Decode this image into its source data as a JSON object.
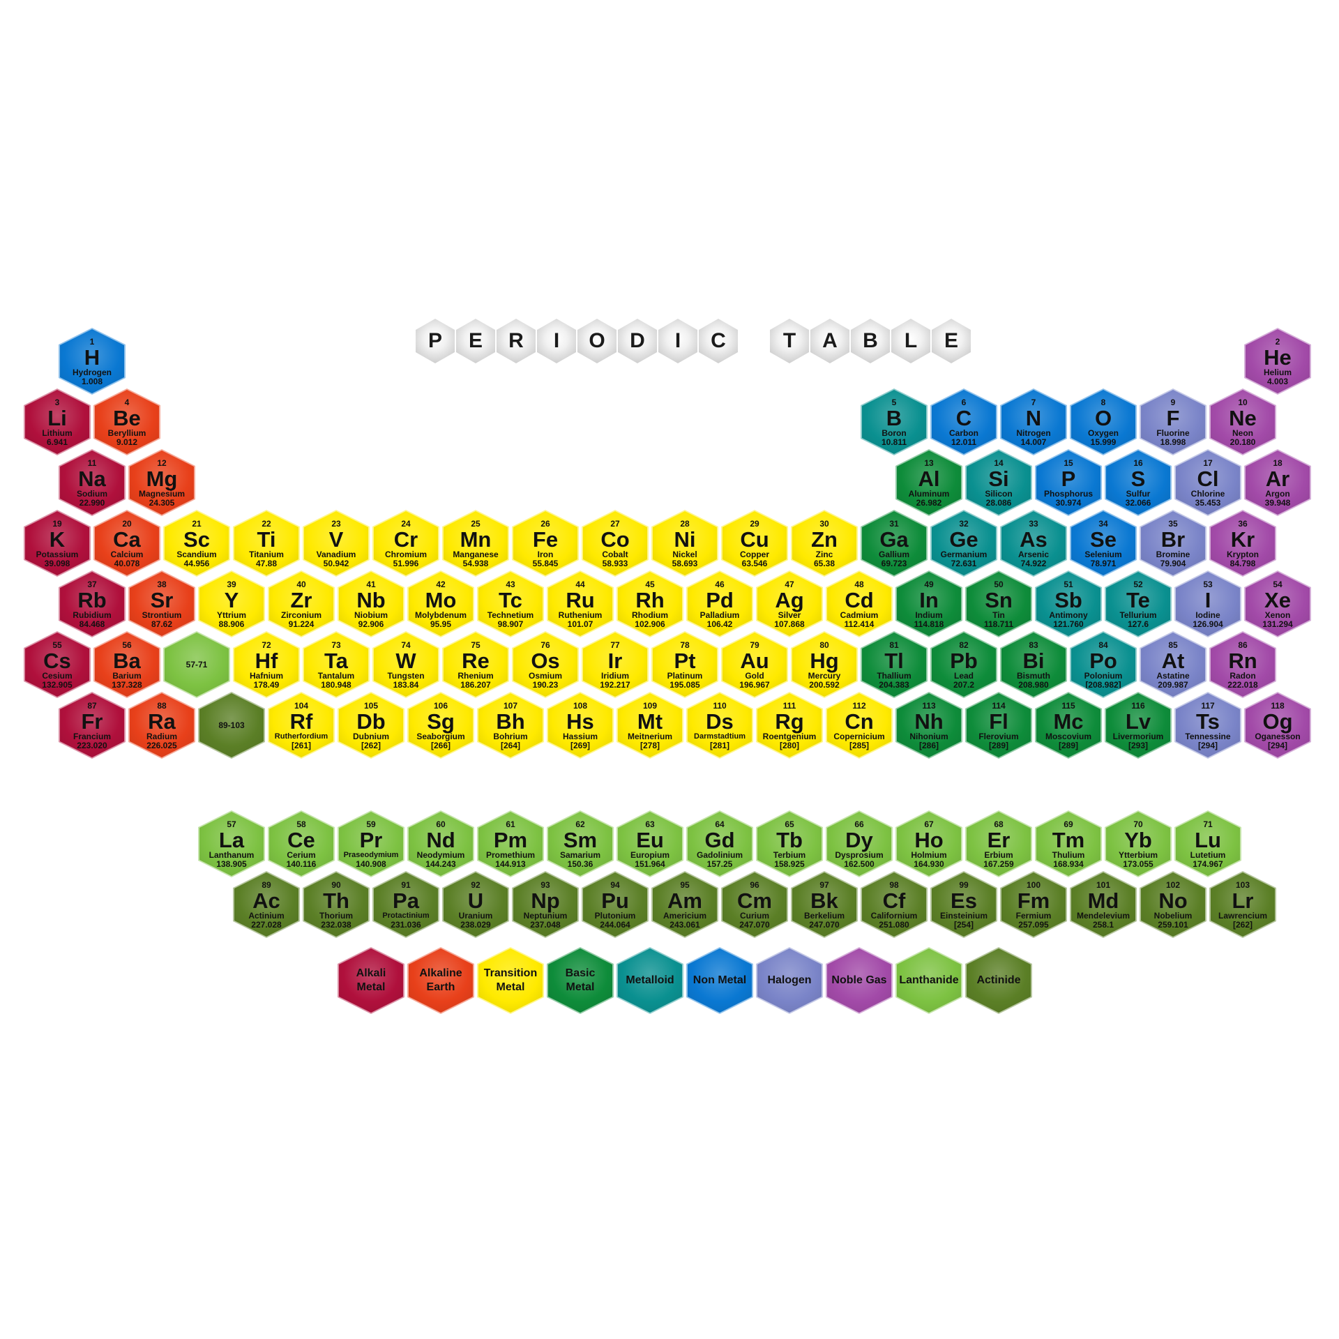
{
  "title": "PERIODIC TABLE",
  "colors": {
    "alkali": "#B0103C",
    "alkaline": "#E8401A",
    "transition": "#FFEA00",
    "basic": "#0E8C3A",
    "metalloid": "#0A9090",
    "nonmetal": "#0A78D2",
    "halogen": "#7A84C8",
    "noble": "#A24AA8",
    "lanthanide": "#7DC242",
    "actinide": "#5B7F26"
  },
  "elements": [
    {
      "n": "1",
      "s": "H",
      "name": "Hydrogen",
      "m": "1.008",
      "c": "nonmetal",
      "col": 0,
      "row": 0
    },
    {
      "n": "2",
      "s": "He",
      "name": "Helium",
      "m": "4.003",
      "c": "noble",
      "col": 17,
      "row": 0
    },
    {
      "n": "3",
      "s": "Li",
      "name": "Lithium",
      "m": "6.941",
      "c": "alkali",
      "col": 0,
      "row": 1
    },
    {
      "n": "4",
      "s": "Be",
      "name": "Beryllium",
      "m": "9.012",
      "c": "alkaline",
      "col": 1,
      "row": 1
    },
    {
      "n": "5",
      "s": "B",
      "name": "Boron",
      "m": "10.811",
      "c": "metalloid",
      "col": 12,
      "row": 1
    },
    {
      "n": "6",
      "s": "C",
      "name": "Carbon",
      "m": "12.011",
      "c": "nonmetal",
      "col": 13,
      "row": 1
    },
    {
      "n": "7",
      "s": "N",
      "name": "Nitrogen",
      "m": "14.007",
      "c": "nonmetal",
      "col": 14,
      "row": 1
    },
    {
      "n": "8",
      "s": "O",
      "name": "Oxygen",
      "m": "15.999",
      "c": "nonmetal",
      "col": 15,
      "row": 1
    },
    {
      "n": "9",
      "s": "F",
      "name": "Fluorine",
      "m": "18.998",
      "c": "halogen",
      "col": 16,
      "row": 1
    },
    {
      "n": "10",
      "s": "Ne",
      "name": "Neon",
      "m": "20.180",
      "c": "noble",
      "col": 17,
      "row": 1
    },
    {
      "n": "11",
      "s": "Na",
      "name": "Sodium",
      "m": "22.990",
      "c": "alkali",
      "col": 0,
      "row": 2
    },
    {
      "n": "12",
      "s": "Mg",
      "name": "Magnesium",
      "m": "24.305",
      "c": "alkaline",
      "col": 1,
      "row": 2
    },
    {
      "n": "13",
      "s": "Al",
      "name": "Aluminum",
      "m": "26.982",
      "c": "basic",
      "col": 12,
      "row": 2
    },
    {
      "n": "14",
      "s": "Si",
      "name": "Silicon",
      "m": "28.086",
      "c": "metalloid",
      "col": 13,
      "row": 2
    },
    {
      "n": "15",
      "s": "P",
      "name": "Phosphorus",
      "m": "30.974",
      "c": "nonmetal",
      "col": 14,
      "row": 2
    },
    {
      "n": "16",
      "s": "S",
      "name": "Sulfur",
      "m": "32.066",
      "c": "nonmetal",
      "col": 15,
      "row": 2
    },
    {
      "n": "17",
      "s": "Cl",
      "name": "Chlorine",
      "m": "35.453",
      "c": "halogen",
      "col": 16,
      "row": 2
    },
    {
      "n": "18",
      "s": "Ar",
      "name": "Argon",
      "m": "39.948",
      "c": "noble",
      "col": 17,
      "row": 2
    },
    {
      "n": "19",
      "s": "K",
      "name": "Potassium",
      "m": "39.098",
      "c": "alkali",
      "col": 0,
      "row": 3
    },
    {
      "n": "20",
      "s": "Ca",
      "name": "Calcium",
      "m": "40.078",
      "c": "alkaline",
      "col": 1,
      "row": 3
    },
    {
      "n": "21",
      "s": "Sc",
      "name": "Scandium",
      "m": "44.956",
      "c": "transition",
      "col": 2,
      "row": 3
    },
    {
      "n": "22",
      "s": "Ti",
      "name": "Titanium",
      "m": "47.88",
      "c": "transition",
      "col": 3,
      "row": 3
    },
    {
      "n": "23",
      "s": "V",
      "name": "Vanadium",
      "m": "50.942",
      "c": "transition",
      "col": 4,
      "row": 3
    },
    {
      "n": "24",
      "s": "Cr",
      "name": "Chromium",
      "m": "51.996",
      "c": "transition",
      "col": 5,
      "row": 3
    },
    {
      "n": "25",
      "s": "Mn",
      "name": "Manganese",
      "m": "54.938",
      "c": "transition",
      "col": 6,
      "row": 3
    },
    {
      "n": "26",
      "s": "Fe",
      "name": "Iron",
      "m": "55.845",
      "c": "transition",
      "col": 7,
      "row": 3
    },
    {
      "n": "27",
      "s": "Co",
      "name": "Cobalt",
      "m": "58.933",
      "c": "transition",
      "col": 8,
      "row": 3
    },
    {
      "n": "28",
      "s": "Ni",
      "name": "Nickel",
      "m": "58.693",
      "c": "transition",
      "col": 9,
      "row": 3
    },
    {
      "n": "29",
      "s": "Cu",
      "name": "Copper",
      "m": "63.546",
      "c": "transition",
      "col": 10,
      "row": 3
    },
    {
      "n": "30",
      "s": "Zn",
      "name": "Zinc",
      "m": "65.38",
      "c": "transition",
      "col": 11,
      "row": 3
    },
    {
      "n": "31",
      "s": "Ga",
      "name": "Gallium",
      "m": "69.723",
      "c": "basic",
      "col": 12,
      "row": 3
    },
    {
      "n": "32",
      "s": "Ge",
      "name": "Germanium",
      "m": "72.631",
      "c": "metalloid",
      "col": 13,
      "row": 3
    },
    {
      "n": "33",
      "s": "As",
      "name": "Arsenic",
      "m": "74.922",
      "c": "metalloid",
      "col": 14,
      "row": 3
    },
    {
      "n": "34",
      "s": "Se",
      "name": "Selenium",
      "m": "78.971",
      "c": "nonmetal",
      "col": 15,
      "row": 3
    },
    {
      "n": "35",
      "s": "Br",
      "name": "Bromine",
      "m": "79.904",
      "c": "halogen",
      "col": 16,
      "row": 3
    },
    {
      "n": "36",
      "s": "Kr",
      "name": "Krypton",
      "m": "84.798",
      "c": "noble",
      "col": 17,
      "row": 3
    },
    {
      "n": "37",
      "s": "Rb",
      "name": "Rubidium",
      "m": "84.468",
      "c": "alkali",
      "col": 0,
      "row": 4
    },
    {
      "n": "38",
      "s": "Sr",
      "name": "Strontium",
      "m": "87.62",
      "c": "alkaline",
      "col": 1,
      "row": 4
    },
    {
      "n": "39",
      "s": "Y",
      "name": "Yttrium",
      "m": "88.906",
      "c": "transition",
      "col": 2,
      "row": 4
    },
    {
      "n": "40",
      "s": "Zr",
      "name": "Zirconium",
      "m": "91.224",
      "c": "transition",
      "col": 3,
      "row": 4
    },
    {
      "n": "41",
      "s": "Nb",
      "name": "Niobium",
      "m": "92.906",
      "c": "transition",
      "col": 4,
      "row": 4
    },
    {
      "n": "42",
      "s": "Mo",
      "name": "Molybdenum",
      "m": "95.95",
      "c": "transition",
      "col": 5,
      "row": 4
    },
    {
      "n": "43",
      "s": "Tc",
      "name": "Technetium",
      "m": "98.907",
      "c": "transition",
      "col": 6,
      "row": 4
    },
    {
      "n": "44",
      "s": "Ru",
      "name": "Ruthenium",
      "m": "101.07",
      "c": "transition",
      "col": 7,
      "row": 4
    },
    {
      "n": "45",
      "s": "Rh",
      "name": "Rhodium",
      "m": "102.906",
      "c": "transition",
      "col": 8,
      "row": 4
    },
    {
      "n": "46",
      "s": "Pd",
      "name": "Palladium",
      "m": "106.42",
      "c": "transition",
      "col": 9,
      "row": 4
    },
    {
      "n": "47",
      "s": "Ag",
      "name": "Silver",
      "m": "107.868",
      "c": "transition",
      "col": 10,
      "row": 4
    },
    {
      "n": "48",
      "s": "Cd",
      "name": "Cadmium",
      "m": "112.414",
      "c": "transition",
      "col": 11,
      "row": 4
    },
    {
      "n": "49",
      "s": "In",
      "name": "Indium",
      "m": "114.818",
      "c": "basic",
      "col": 12,
      "row": 4
    },
    {
      "n": "50",
      "s": "Sn",
      "name": "Tin",
      "m": "118.711",
      "c": "basic",
      "col": 13,
      "row": 4
    },
    {
      "n": "51",
      "s": "Sb",
      "name": "Antimony",
      "m": "121.760",
      "c": "metalloid",
      "col": 14,
      "row": 4
    },
    {
      "n": "52",
      "s": "Te",
      "name": "Tellurium",
      "m": "127.6",
      "c": "metalloid",
      "col": 15,
      "row": 4
    },
    {
      "n": "53",
      "s": "I",
      "name": "Iodine",
      "m": "126.904",
      "c": "halogen",
      "col": 16,
      "row": 4
    },
    {
      "n": "54",
      "s": "Xe",
      "name": "Xenon",
      "m": "131.294",
      "c": "noble",
      "col": 17,
      "row": 4
    },
    {
      "n": "55",
      "s": "Cs",
      "name": "Cesium",
      "m": "132.905",
      "c": "alkali",
      "col": 0,
      "row": 5
    },
    {
      "n": "56",
      "s": "Ba",
      "name": "Barium",
      "m": "137.328",
      "c": "alkaline",
      "col": 1,
      "row": 5
    },
    {
      "n": "72",
      "s": "Hf",
      "name": "Hafnium",
      "m": "178.49",
      "c": "transition",
      "col": 3,
      "row": 5
    },
    {
      "n": "73",
      "s": "Ta",
      "name": "Tantalum",
      "m": "180.948",
      "c": "transition",
      "col": 4,
      "row": 5
    },
    {
      "n": "74",
      "s": "W",
      "name": "Tungsten",
      "m": "183.84",
      "c": "transition",
      "col": 5,
      "row": 5
    },
    {
      "n": "75",
      "s": "Re",
      "name": "Rhenium",
      "m": "186.207",
      "c": "transition",
      "col": 6,
      "row": 5
    },
    {
      "n": "76",
      "s": "Os",
      "name": "Osmium",
      "m": "190.23",
      "c": "transition",
      "col": 7,
      "row": 5
    },
    {
      "n": "77",
      "s": "Ir",
      "name": "Iridium",
      "m": "192.217",
      "c": "transition",
      "col": 8,
      "row": 5
    },
    {
      "n": "78",
      "s": "Pt",
      "name": "Platinum",
      "m": "195.085",
      "c": "transition",
      "col": 9,
      "row": 5
    },
    {
      "n": "79",
      "s": "Au",
      "name": "Gold",
      "m": "196.967",
      "c": "transition",
      "col": 10,
      "row": 5
    },
    {
      "n": "80",
      "s": "Hg",
      "name": "Mercury",
      "m": "200.592",
      "c": "transition",
      "col": 11,
      "row": 5
    },
    {
      "n": "81",
      "s": "Tl",
      "name": "Thallium",
      "m": "204.383",
      "c": "basic",
      "col": 12,
      "row": 5
    },
    {
      "n": "82",
      "s": "Pb",
      "name": "Lead",
      "m": "207.2",
      "c": "basic",
      "col": 13,
      "row": 5
    },
    {
      "n": "83",
      "s": "Bi",
      "name": "Bismuth",
      "m": "208.980",
      "c": "basic",
      "col": 14,
      "row": 5
    },
    {
      "n": "84",
      "s": "Po",
      "name": "Polonium",
      "m": "[208.982]",
      "c": "metalloid",
      "col": 15,
      "row": 5
    },
    {
      "n": "85",
      "s": "At",
      "name": "Astatine",
      "m": "209.987",
      "c": "halogen",
      "col": 16,
      "row": 5
    },
    {
      "n": "86",
      "s": "Rn",
      "name": "Radon",
      "m": "222.018",
      "c": "noble",
      "col": 17,
      "row": 5
    },
    {
      "n": "87",
      "s": "Fr",
      "name": "Francium",
      "m": "223.020",
      "c": "alkali",
      "col": 0,
      "row": 6
    },
    {
      "n": "88",
      "s": "Ra",
      "name": "Radium",
      "m": "226.025",
      "c": "alkaline",
      "col": 1,
      "row": 6
    },
    {
      "n": "104",
      "s": "Rf",
      "name": "Rutherfordium",
      "m": "[261]",
      "c": "transition",
      "col": 3,
      "row": 6
    },
    {
      "n": "105",
      "s": "Db",
      "name": "Dubnium",
      "m": "[262]",
      "c": "transition",
      "col": 4,
      "row": 6
    },
    {
      "n": "106",
      "s": "Sg",
      "name": "Seaborgium",
      "m": "[266]",
      "c": "transition",
      "col": 5,
      "row": 6
    },
    {
      "n": "107",
      "s": "Bh",
      "name": "Bohrium",
      "m": "[264]",
      "c": "transition",
      "col": 6,
      "row": 6
    },
    {
      "n": "108",
      "s": "Hs",
      "name": "Hassium",
      "m": "[269]",
      "c": "transition",
      "col": 7,
      "row": 6
    },
    {
      "n": "109",
      "s": "Mt",
      "name": "Meitnerium",
      "m": "[278]",
      "c": "transition",
      "col": 8,
      "row": 6
    },
    {
      "n": "110",
      "s": "Ds",
      "name": "Darmstadtium",
      "m": "[281]",
      "c": "transition",
      "col": 9,
      "row": 6
    },
    {
      "n": "111",
      "s": "Rg",
      "name": "Roentgenium",
      "m": "[280]",
      "c": "transition",
      "col": 10,
      "row": 6
    },
    {
      "n": "112",
      "s": "Cn",
      "name": "Copernicium",
      "m": "[285]",
      "c": "transition",
      "col": 11,
      "row": 6
    },
    {
      "n": "113",
      "s": "Nh",
      "name": "Nihonium",
      "m": "[286]",
      "c": "basic",
      "col": 12,
      "row": 6
    },
    {
      "n": "114",
      "s": "Fl",
      "name": "Flerovium",
      "m": "[289]",
      "c": "basic",
      "col": 13,
      "row": 6
    },
    {
      "n": "115",
      "s": "Mc",
      "name": "Moscovium",
      "m": "[289]",
      "c": "basic",
      "col": 14,
      "row": 6
    },
    {
      "n": "116",
      "s": "Lv",
      "name": "Livermorium",
      "m": "[293]",
      "c": "basic",
      "col": 15,
      "row": 6
    },
    {
      "n": "117",
      "s": "Ts",
      "name": "Tennessine",
      "m": "[294]",
      "c": "halogen",
      "col": 16,
      "row": 6
    },
    {
      "n": "118",
      "s": "Og",
      "name": "Oganesson",
      "m": "[294]",
      "c": "noble",
      "col": 17,
      "row": 6
    }
  ],
  "placeholders": [
    {
      "label": "57-71",
      "c": "lanthanide",
      "col": 2,
      "row": 5
    },
    {
      "label": "89-103",
      "c": "actinide",
      "col": 2,
      "row": 6
    }
  ],
  "f_block": [
    {
      "n": "57",
      "s": "La",
      "name": "Lanthanum",
      "m": "138.905",
      "c": "lanthanide",
      "col": 0,
      "row": 0
    },
    {
      "n": "58",
      "s": "Ce",
      "name": "Cerium",
      "m": "140.116",
      "c": "lanthanide",
      "col": 1,
      "row": 0
    },
    {
      "n": "59",
      "s": "Pr",
      "name": "Praseodymium",
      "m": "140.908",
      "c": "lanthanide",
      "col": 2,
      "row": 0
    },
    {
      "n": "60",
      "s": "Nd",
      "name": "Neodymium",
      "m": "144.243",
      "c": "lanthanide",
      "col": 3,
      "row": 0
    },
    {
      "n": "61",
      "s": "Pm",
      "name": "Promethium",
      "m": "144.913",
      "c": "lanthanide",
      "col": 4,
      "row": 0
    },
    {
      "n": "62",
      "s": "Sm",
      "name": "Samarium",
      "m": "150.36",
      "c": "lanthanide",
      "col": 5,
      "row": 0
    },
    {
      "n": "63",
      "s": "Eu",
      "name": "Europium",
      "m": "151.964",
      "c": "lanthanide",
      "col": 6,
      "row": 0
    },
    {
      "n": "64",
      "s": "Gd",
      "name": "Gadolinium",
      "m": "157.25",
      "c": "lanthanide",
      "col": 7,
      "row": 0
    },
    {
      "n": "65",
      "s": "Tb",
      "name": "Terbium",
      "m": "158.925",
      "c": "lanthanide",
      "col": 8,
      "row": 0
    },
    {
      "n": "66",
      "s": "Dy",
      "name": "Dysprosium",
      "m": "162.500",
      "c": "lanthanide",
      "col": 9,
      "row": 0
    },
    {
      "n": "67",
      "s": "Ho",
      "name": "Holmium",
      "m": "164.930",
      "c": "lanthanide",
      "col": 10,
      "row": 0
    },
    {
      "n": "68",
      "s": "Er",
      "name": "Erbium",
      "m": "167.259",
      "c": "lanthanide",
      "col": 11,
      "row": 0
    },
    {
      "n": "69",
      "s": "Tm",
      "name": "Thulium",
      "m": "168.934",
      "c": "lanthanide",
      "col": 12,
      "row": 0
    },
    {
      "n": "70",
      "s": "Yb",
      "name": "Ytterbium",
      "m": "173.055",
      "c": "lanthanide",
      "col": 13,
      "row": 0
    },
    {
      "n": "71",
      "s": "Lu",
      "name": "Lutetium",
      "m": "174.967",
      "c": "lanthanide",
      "col": 14,
      "row": 0
    },
    {
      "n": "89",
      "s": "Ac",
      "name": "Actinium",
      "m": "227.028",
      "c": "actinide",
      "col": 0,
      "row": 1
    },
    {
      "n": "90",
      "s": "Th",
      "name": "Thorium",
      "m": "232.038",
      "c": "actinide",
      "col": 1,
      "row": 1
    },
    {
      "n": "91",
      "s": "Pa",
      "name": "Protactinium",
      "m": "231.036",
      "c": "actinide",
      "col": 2,
      "row": 1
    },
    {
      "n": "92",
      "s": "U",
      "name": "Uranium",
      "m": "238.029",
      "c": "actinide",
      "col": 3,
      "row": 1
    },
    {
      "n": "93",
      "s": "Np",
      "name": "Neptunium",
      "m": "237.048",
      "c": "actinide",
      "col": 4,
      "row": 1
    },
    {
      "n": "94",
      "s": "Pu",
      "name": "Plutonium",
      "m": "244.064",
      "c": "actinide",
      "col": 5,
      "row": 1
    },
    {
      "n": "95",
      "s": "Am",
      "name": "Americium",
      "m": "243.061",
      "c": "actinide",
      "col": 6,
      "row": 1
    },
    {
      "n": "96",
      "s": "Cm",
      "name": "Curium",
      "m": "247.070",
      "c": "actinide",
      "col": 7,
      "row": 1
    },
    {
      "n": "97",
      "s": "Bk",
      "name": "Berkelium",
      "m": "247.070",
      "c": "actinide",
      "col": 8,
      "row": 1
    },
    {
      "n": "98",
      "s": "Cf",
      "name": "Californium",
      "m": "251.080",
      "c": "actinide",
      "col": 9,
      "row": 1
    },
    {
      "n": "99",
      "s": "Es",
      "name": "Einsteinium",
      "m": "[254]",
      "c": "actinide",
      "col": 10,
      "row": 1
    },
    {
      "n": "100",
      "s": "Fm",
      "name": "Fermium",
      "m": "257.095",
      "c": "actinide",
      "col": 11,
      "row": 1
    },
    {
      "n": "101",
      "s": "Md",
      "name": "Mendelevium",
      "m": "258.1",
      "c": "actinide",
      "col": 12,
      "row": 1
    },
    {
      "n": "102",
      "s": "No",
      "name": "Nobelium",
      "m": "259.101",
      "c": "actinide",
      "col": 13,
      "row": 1
    },
    {
      "n": "103",
      "s": "Lr",
      "name": "Lawrencium",
      "m": "[262]",
      "c": "actinide",
      "col": 14,
      "row": 1
    }
  ],
  "legend": [
    {
      "label": "Alkali Metal",
      "c": "alkali"
    },
    {
      "label": "Alkaline Earth",
      "c": "alkaline"
    },
    {
      "label": "Transition Metal",
      "c": "transition"
    },
    {
      "label": "Basic Metal",
      "c": "basic"
    },
    {
      "label": "Metalloid",
      "c": "metalloid"
    },
    {
      "label": "Non Metal",
      "c": "nonmetal"
    },
    {
      "label": "Halogen",
      "c": "halogen"
    },
    {
      "label": "Noble Gas",
      "c": "noble"
    },
    {
      "label": "Lanthanide",
      "c": "lanthanide"
    },
    {
      "label": "Actinide",
      "c": "actinide"
    }
  ]
}
